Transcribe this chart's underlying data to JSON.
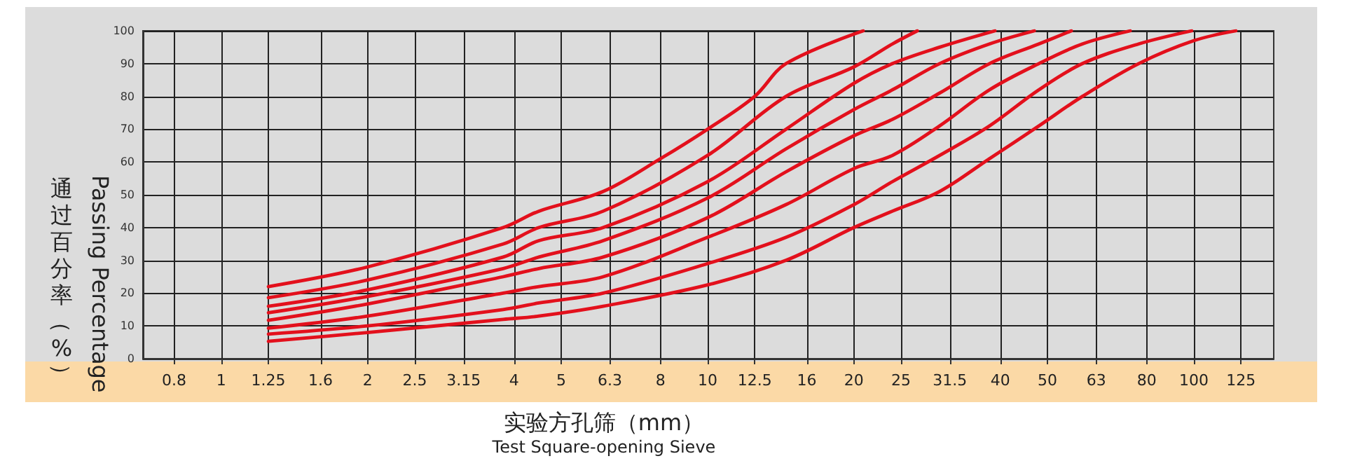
{
  "chart_data": {
    "type": "line",
    "xlabel": "实验方孔筛（mm）\nTest Square-opening Sieve",
    "ylabel": "通过百分率（%）\nPassing Percentage",
    "log": "x",
    "xlim": [
      0.69,
      146
    ],
    "xticks": [
      0.8,
      1,
      1.25,
      1.6,
      2,
      2.5,
      3.15,
      4,
      5,
      6.3,
      8,
      10,
      12.5,
      16,
      20,
      25,
      31.5,
      40,
      50,
      63,
      80,
      100,
      125
    ],
    "ylim": [
      0,
      100
    ],
    "yticks": [
      0,
      10,
      20,
      30,
      40,
      50,
      60,
      70,
      80,
      90,
      100
    ],
    "grid": true,
    "marker": "none",
    "line_style": "solid",
    "series": [
      {
        "color": "#e3101c",
        "x": [
          1.25,
          2,
          3.8,
          4.5,
          6.1,
          8,
          10,
          12.5,
          14.5,
          20.9
        ],
        "values": [
          22,
          28,
          40,
          45,
          51,
          61,
          70,
          80,
          90,
          100
        ]
      },
      {
        "color": "#e3101c",
        "x": [
          1.25,
          2,
          3.8,
          4.5,
          6.1,
          10,
          14.5,
          20,
          24,
          27
        ],
        "values": [
          18.6,
          24,
          35,
          40,
          45,
          62,
          80,
          89,
          96,
          100
        ]
      },
      {
        "color": "#e3101c",
        "x": [
          1.25,
          2,
          3.8,
          4.5,
          6.1,
          10,
          14.5,
          20,
          24,
          30,
          39
        ],
        "values": [
          16,
          21,
          31,
          36,
          40,
          54,
          70,
          84,
          90,
          95,
          100
        ]
      },
      {
        "color": "#e3101c",
        "x": [
          1.25,
          2,
          3.8,
          4.5,
          6.1,
          10,
          14.5,
          20,
          24,
          30,
          38,
          47
        ],
        "values": [
          14,
          19,
          27.5,
          31,
          36,
          49,
          64,
          76,
          82,
          90,
          96,
          100
        ]
      },
      {
        "color": "#e3101c",
        "x": [
          1.25,
          2,
          3.8,
          4.5,
          6.1,
          10,
          14.5,
          20,
          24,
          30,
          38,
          48,
          56
        ],
        "values": [
          11.7,
          16.7,
          25,
          27.5,
          31,
          43,
          57,
          68,
          73,
          81,
          90,
          96,
          100
        ]
      },
      {
        "color": "#e3101c",
        "x": [
          1.25,
          2,
          3.8,
          4.5,
          6.1,
          10,
          14.5,
          20,
          24,
          30,
          38,
          48,
          59,
          74
        ],
        "values": [
          9.3,
          13,
          20,
          22,
          25,
          37,
          47,
          58,
          62,
          71,
          82,
          90,
          96,
          100
        ]
      },
      {
        "color": "#e3101c",
        "x": [
          1.25,
          2,
          3.8,
          4.5,
          6.1,
          10,
          14.5,
          20,
          24,
          30,
          38,
          48,
          59,
          77,
          99
        ],
        "values": [
          7.5,
          10,
          15,
          17,
          20,
          29,
          37,
          47,
          54,
          62,
          71,
          82,
          90,
          96,
          100
        ]
      },
      {
        "color": "#e3101c",
        "x": [
          1.25,
          2,
          3.8,
          4.5,
          6.1,
          10,
          14.5,
          20,
          24,
          30,
          38,
          48,
          59,
          77,
          100,
          122
        ],
        "values": [
          5.3,
          8,
          12,
          13,
          16,
          22.5,
          30,
          40,
          45,
          51,
          61,
          71,
          80,
          90,
          97,
          100
        ]
      }
    ]
  }
}
